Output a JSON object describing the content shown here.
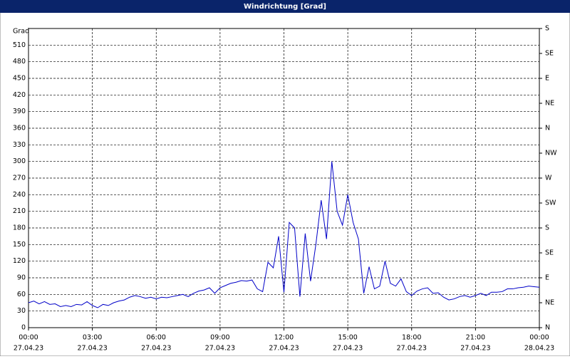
{
  "chart_data": {
    "type": "line",
    "title": "Windrichtung [Grad]",
    "y_label": "Grad",
    "x": [
      0,
      0.25,
      0.5,
      0.75,
      1,
      1.25,
      1.5,
      1.75,
      2,
      2.25,
      2.5,
      2.75,
      3,
      3.25,
      3.5,
      3.75,
      4,
      4.25,
      4.5,
      4.75,
      5,
      5.25,
      5.5,
      5.75,
      6,
      6.25,
      6.5,
      6.75,
      7,
      7.25,
      7.5,
      7.75,
      8,
      8.25,
      8.5,
      8.75,
      9,
      9.25,
      9.5,
      9.75,
      10,
      10.25,
      10.5,
      10.75,
      11,
      11.25,
      11.5,
      11.75,
      12,
      12.25,
      12.5,
      12.75,
      13,
      13.25,
      13.5,
      13.75,
      14,
      14.25,
      14.5,
      14.75,
      15,
      15.25,
      15.5,
      15.75,
      16,
      16.25,
      16.5,
      16.75,
      17,
      17.25,
      17.5,
      17.75,
      18,
      18.25,
      18.5,
      18.75,
      19,
      19.25,
      19.5,
      19.75,
      20,
      20.25,
      20.5,
      20.75,
      21,
      21.25,
      21.5,
      21.75,
      22,
      22.25,
      22.5,
      22.75,
      23,
      23.25,
      23.5,
      23.75,
      24
    ],
    "series": [
      {
        "name": "Windrichtung",
        "color": "#0000c8",
        "values": [
          45,
          48,
          43,
          47,
          42,
          43,
          38,
          40,
          38,
          42,
          41,
          47,
          40,
          36,
          42,
          40,
          45,
          48,
          50,
          55,
          58,
          56,
          53,
          55,
          52,
          55,
          54,
          56,
          58,
          60,
          56,
          62,
          66,
          68,
          72,
          62,
          72,
          76,
          80,
          82,
          85,
          84,
          86,
          70,
          65,
          118,
          108,
          165,
          64,
          190,
          180,
          56,
          170,
          84,
          150,
          230,
          160,
          300,
          210,
          185,
          240,
          190,
          160,
          62,
          110,
          70,
          75,
          120,
          80,
          75,
          88,
          65,
          58,
          66,
          70,
          72,
          62,
          63,
          55,
          50,
          52,
          56,
          58,
          55,
          58,
          62,
          58,
          64,
          64,
          65,
          70,
          70,
          72,
          73,
          75,
          74,
          73
        ]
      }
    ],
    "xlim": [
      0,
      24
    ],
    "xticks": [
      {
        "value": 0,
        "label": "00:00"
      },
      {
        "value": 3,
        "label": "03:00"
      },
      {
        "value": 6,
        "label": "06:00"
      },
      {
        "value": 9,
        "label": "09:00"
      },
      {
        "value": 12,
        "label": "12:00"
      },
      {
        "value": 15,
        "label": "15:00"
      },
      {
        "value": 18,
        "label": "18:00"
      },
      {
        "value": 21,
        "label": "21:00"
      },
      {
        "value": 24,
        "label": "00:00"
      }
    ],
    "xtick_dates": [
      "27.04.23",
      "27.04.23",
      "27.04.23",
      "27.04.23",
      "27.04.23",
      "27.04.23",
      "27.04.23",
      "27.04.23",
      "28.04.23"
    ],
    "ylim": [
      0,
      540
    ],
    "yticks": [
      0,
      30,
      60,
      90,
      120,
      150,
      180,
      210,
      240,
      270,
      300,
      330,
      360,
      390,
      420,
      450,
      480,
      510
    ],
    "y2lim": [
      0,
      540
    ],
    "y2ticks": [
      {
        "value": 0,
        "label": "N"
      },
      {
        "value": 45,
        "label": "NE"
      },
      {
        "value": 90,
        "label": "E"
      },
      {
        "value": 135,
        "label": "SE"
      },
      {
        "value": 180,
        "label": "S"
      },
      {
        "value": 225,
        "label": "SW"
      },
      {
        "value": 270,
        "label": "W"
      },
      {
        "value": 315,
        "label": "NW"
      },
      {
        "value": 360,
        "label": "N"
      },
      {
        "value": 405,
        "label": "NE"
      },
      {
        "value": 450,
        "label": "E"
      },
      {
        "value": 495,
        "label": "SE"
      },
      {
        "value": 540,
        "label": "S"
      }
    ],
    "grid": true
  }
}
